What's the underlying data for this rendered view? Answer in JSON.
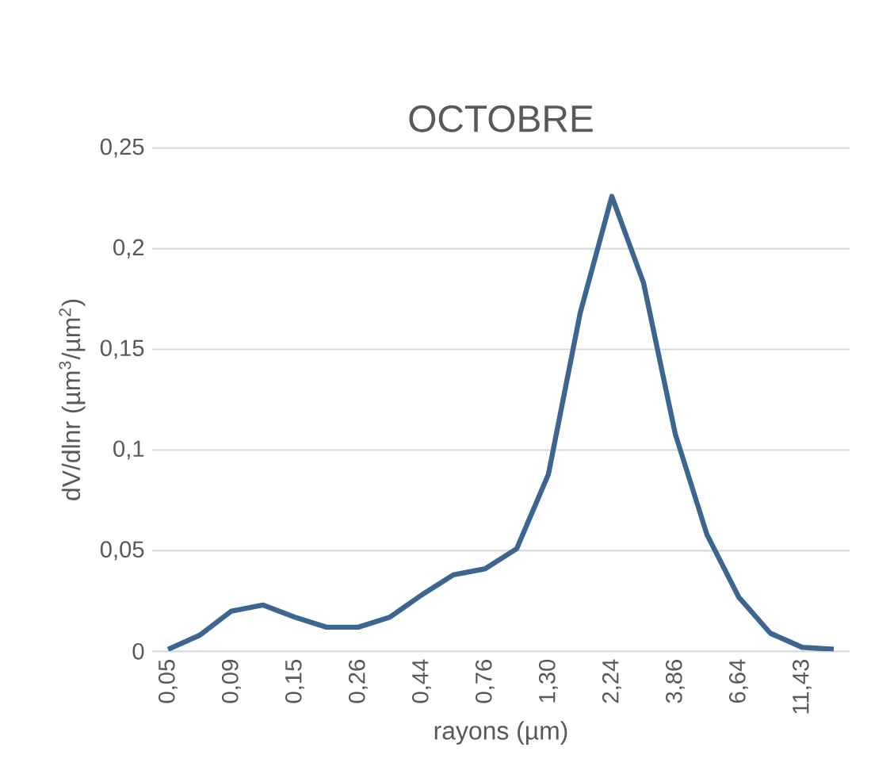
{
  "chart_data": {
    "type": "line",
    "title": "OCTOBRE",
    "xlabel": "rayons (µm)",
    "ylabel": "dV/dlnr (µm$^{3}$/µm$^{2}$)",
    "categories": [
      "0,05",
      null,
      "0,09",
      null,
      "0,15",
      null,
      "0,26",
      null,
      "0,44",
      null,
      "0,76",
      null,
      "1,30",
      null,
      "2,24",
      null,
      "3,86",
      null,
      "6,64",
      null,
      "11,43",
      null
    ],
    "values": [
      0.001,
      0.008,
      0.02,
      0.023,
      0.017,
      0.012,
      0.012,
      0.017,
      0.028,
      0.038,
      0.041,
      0.051,
      0.088,
      0.168,
      0.226,
      0.183,
      0.108,
      0.058,
      0.027,
      0.009,
      0.002,
      0.001
    ],
    "color": "#3c6690",
    "ylim": [
      0,
      0.25
    ],
    "yticks": [
      {
        "value": 0,
        "label": "0"
      },
      {
        "value": 0.05,
        "label": "0,05"
      },
      {
        "value": 0.1,
        "label": "0,1"
      },
      {
        "value": 0.15,
        "label": "0,15"
      },
      {
        "value": 0.2,
        "label": "0,2"
      },
      {
        "value": 0.25,
        "label": "0,25"
      }
    ],
    "grid": "y",
    "marker": "none",
    "line_style": "solid"
  }
}
